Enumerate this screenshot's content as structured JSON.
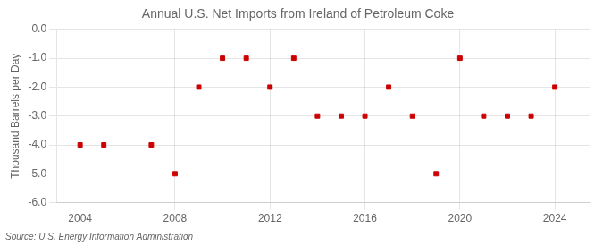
{
  "chart_data": {
    "type": "scatter",
    "title": "Annual U.S. Net Imports from Ireland of Petroleum Coke",
    "ylabel": "Thousand Barrels per Day",
    "source": "Source: U.S. Energy Information Administration",
    "x": [
      2004,
      2005,
      2007,
      2008,
      2009,
      2010,
      2011,
      2012,
      2013,
      2014,
      2015,
      2016,
      2017,
      2018,
      2019,
      2020,
      2021,
      2022,
      2023,
      2024
    ],
    "values": [
      -4,
      -4,
      -4,
      -5,
      -2,
      -1,
      -1,
      -2,
      -1,
      -3,
      -3,
      -3,
      -2,
      -3,
      -5,
      -1,
      -3,
      -3,
      -3,
      -2
    ],
    "color": "#cc0000",
    "marker": "square",
    "xlim": [
      2003.0,
      2025.5
    ],
    "xticks": [
      2004,
      2008,
      2012,
      2016,
      2020,
      2024
    ],
    "ylim": [
      -6.0,
      0.0
    ],
    "yticks": [
      {
        "value": 0,
        "label": "0.0"
      },
      {
        "value": -1,
        "label": "-1.0"
      },
      {
        "value": -2,
        "label": "-2.0"
      },
      {
        "value": -3,
        "label": "-3.0"
      },
      {
        "value": -4,
        "label": "-4.0"
      },
      {
        "value": -5,
        "label": "-5.0"
      },
      {
        "value": -6,
        "label": "-6.0"
      }
    ],
    "grid": true
  }
}
